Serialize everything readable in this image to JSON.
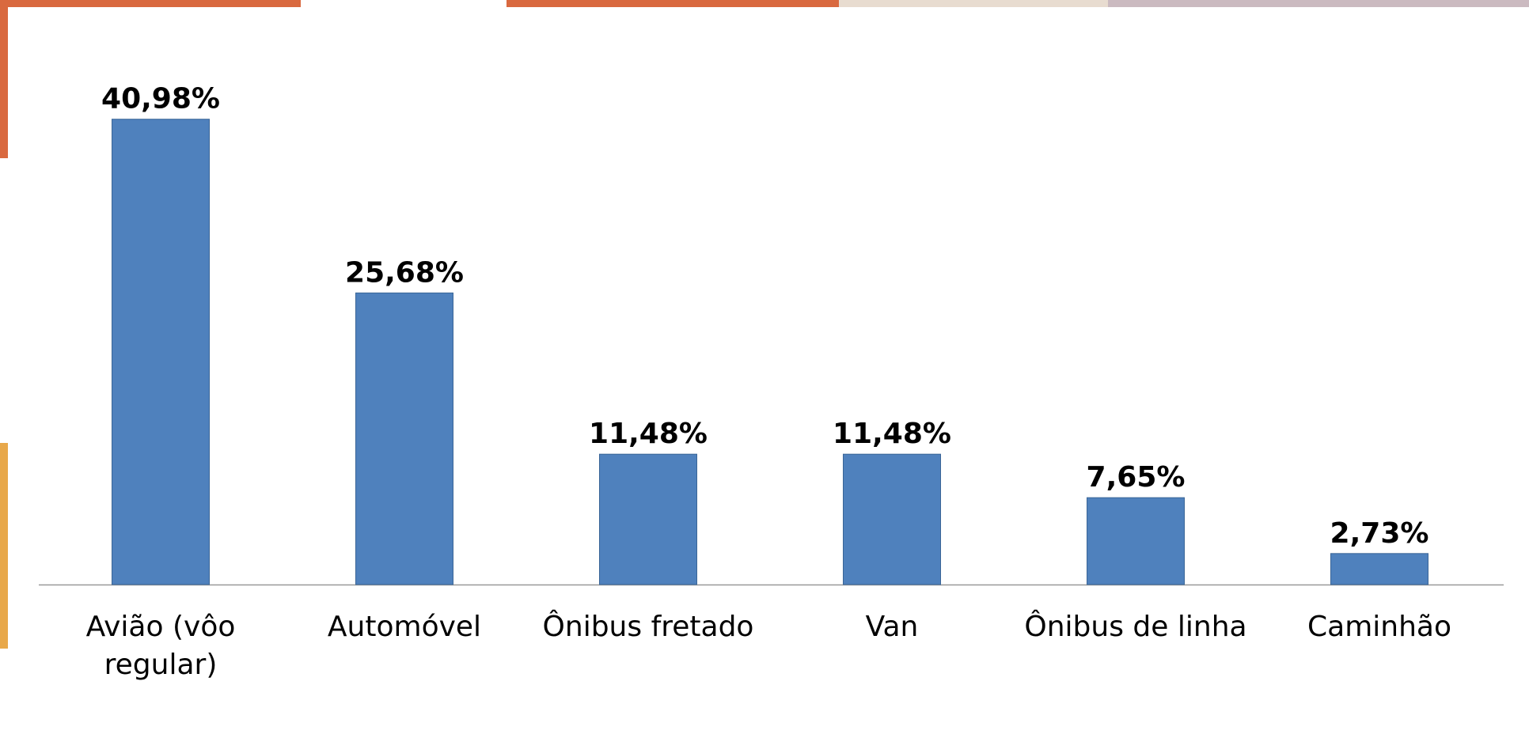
{
  "chart_data": {
    "type": "bar",
    "categories": [
      "Avião (vôo regular)",
      "Automóvel",
      "Ônibus fretado",
      "Van",
      "Ônibus de linha",
      "Caminhão"
    ],
    "values": [
      40.98,
      25.68,
      11.48,
      11.48,
      7.65,
      2.73
    ],
    "value_labels": [
      "40,98%",
      "25,68%",
      "11,48%",
      "11,48%",
      "7,65%",
      "2,73%"
    ],
    "color": "#4f81bd",
    "ylim": [
      0,
      45
    ]
  }
}
